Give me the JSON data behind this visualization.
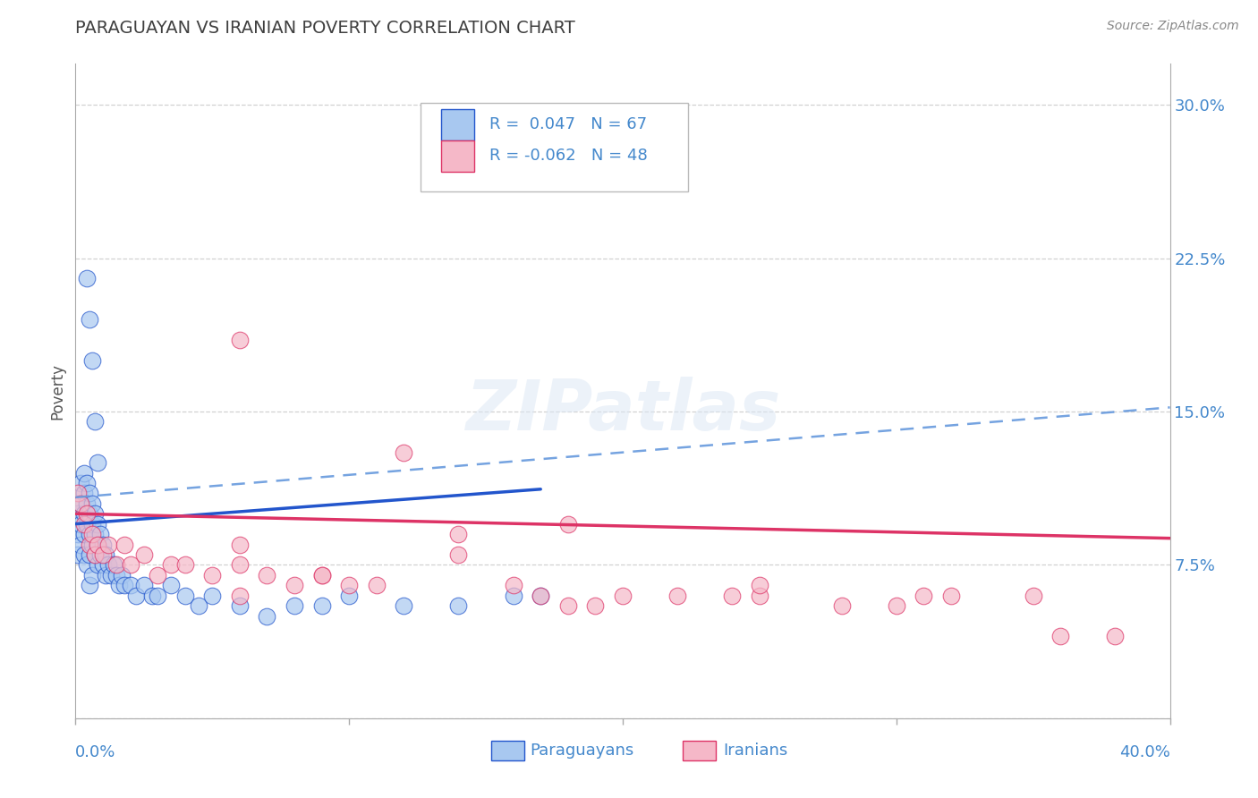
{
  "title": "PARAGUAYAN VS IRANIAN POVERTY CORRELATION CHART",
  "source": "Source: ZipAtlas.com",
  "ylabel": "Poverty",
  "y_ticks": [
    0.0,
    0.075,
    0.15,
    0.225,
    0.3
  ],
  "y_tick_labels": [
    "",
    "7.5%",
    "15.0%",
    "22.5%",
    "30.0%"
  ],
  "x_range": [
    0.0,
    0.4
  ],
  "y_range": [
    0.0,
    0.32
  ],
  "blue_color": "#a8c8f0",
  "pink_color": "#f5b8c8",
  "trend_blue_solid": "#2255cc",
  "trend_blue_dash": "#6699dd",
  "trend_pink": "#dd3366",
  "title_color": "#404040",
  "axis_label_color": "#4488cc",
  "grid_color": "#cccccc",
  "background_color": "#ffffff",
  "paraguayan_x": [
    0.001,
    0.001,
    0.001,
    0.002,
    0.002,
    0.002,
    0.002,
    0.003,
    0.003,
    0.003,
    0.003,
    0.003,
    0.004,
    0.004,
    0.004,
    0.004,
    0.005,
    0.005,
    0.005,
    0.005,
    0.005,
    0.006,
    0.006,
    0.006,
    0.006,
    0.007,
    0.007,
    0.007,
    0.008,
    0.008,
    0.008,
    0.009,
    0.009,
    0.01,
    0.01,
    0.011,
    0.011,
    0.012,
    0.013,
    0.014,
    0.015,
    0.016,
    0.017,
    0.018,
    0.02,
    0.022,
    0.025,
    0.028,
    0.03,
    0.035,
    0.04,
    0.045,
    0.05,
    0.06,
    0.07,
    0.08,
    0.09,
    0.1,
    0.12,
    0.14,
    0.16,
    0.17,
    0.004,
    0.005,
    0.006,
    0.007,
    0.008
  ],
  "paraguayan_y": [
    0.1,
    0.09,
    0.08,
    0.115,
    0.105,
    0.095,
    0.085,
    0.12,
    0.11,
    0.1,
    0.09,
    0.08,
    0.115,
    0.105,
    0.095,
    0.075,
    0.11,
    0.1,
    0.09,
    0.08,
    0.065,
    0.105,
    0.095,
    0.085,
    0.07,
    0.1,
    0.09,
    0.08,
    0.095,
    0.085,
    0.075,
    0.09,
    0.08,
    0.085,
    0.075,
    0.08,
    0.07,
    0.075,
    0.07,
    0.075,
    0.07,
    0.065,
    0.07,
    0.065,
    0.065,
    0.06,
    0.065,
    0.06,
    0.06,
    0.065,
    0.06,
    0.055,
    0.06,
    0.055,
    0.05,
    0.055,
    0.055,
    0.06,
    0.055,
    0.055,
    0.06,
    0.06,
    0.215,
    0.195,
    0.175,
    0.145,
    0.125
  ],
  "iranian_x": [
    0.001,
    0.002,
    0.003,
    0.004,
    0.005,
    0.006,
    0.007,
    0.008,
    0.01,
    0.012,
    0.015,
    0.018,
    0.02,
    0.025,
    0.03,
    0.035,
    0.04,
    0.05,
    0.06,
    0.07,
    0.08,
    0.09,
    0.1,
    0.12,
    0.14,
    0.16,
    0.18,
    0.2,
    0.22,
    0.25,
    0.28,
    0.31,
    0.35,
    0.38,
    0.06,
    0.09,
    0.14,
    0.18,
    0.25,
    0.32,
    0.06,
    0.11,
    0.17,
    0.24,
    0.3,
    0.36,
    0.06,
    0.19
  ],
  "iranian_y": [
    0.11,
    0.105,
    0.095,
    0.1,
    0.085,
    0.09,
    0.08,
    0.085,
    0.08,
    0.085,
    0.075,
    0.085,
    0.075,
    0.08,
    0.07,
    0.075,
    0.075,
    0.07,
    0.075,
    0.07,
    0.065,
    0.07,
    0.065,
    0.13,
    0.09,
    0.065,
    0.095,
    0.06,
    0.06,
    0.06,
    0.055,
    0.06,
    0.06,
    0.04,
    0.06,
    0.07,
    0.08,
    0.055,
    0.065,
    0.06,
    0.085,
    0.065,
    0.06,
    0.06,
    0.055,
    0.04,
    0.185,
    0.055
  ],
  "blue_trend_x0": 0.0,
  "blue_trend_y0": 0.095,
  "blue_trend_x1": 0.17,
  "blue_trend_y1": 0.112,
  "dash_trend_x0": 0.0,
  "dash_trend_y0": 0.108,
  "dash_trend_x1": 0.4,
  "dash_trend_y1": 0.152,
  "pink_trend_x0": 0.0,
  "pink_trend_y0": 0.1,
  "pink_trend_x1": 0.4,
  "pink_trend_y1": 0.088
}
